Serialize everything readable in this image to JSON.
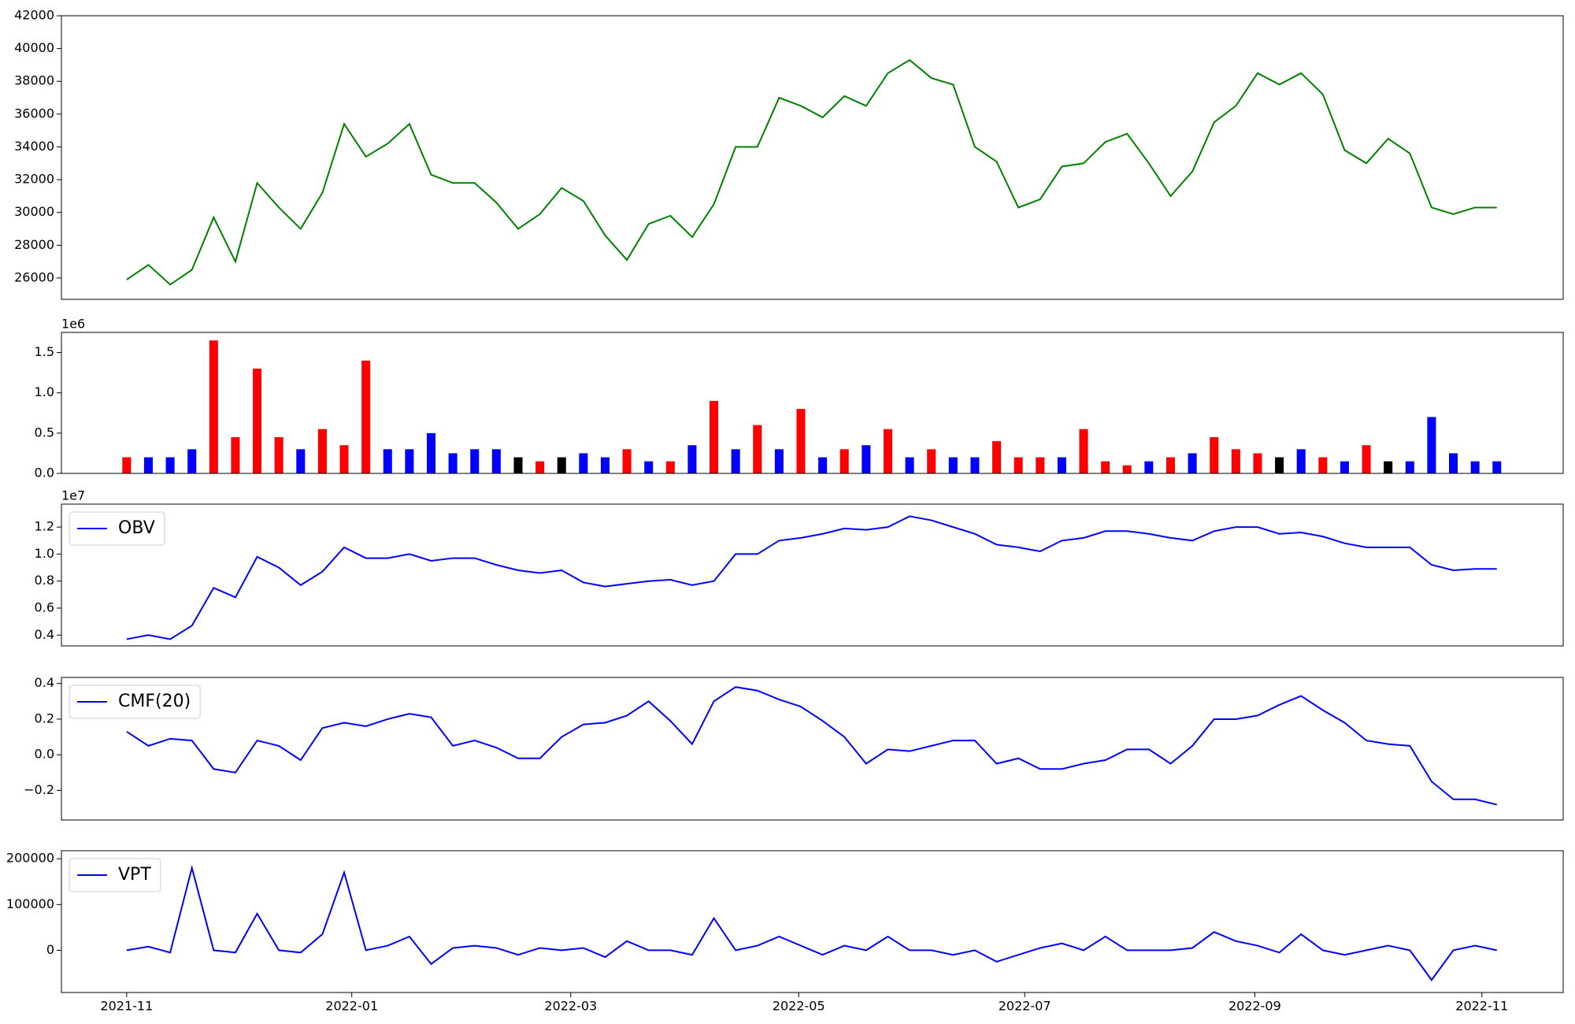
{
  "chart_data": [
    {
      "type": "line",
      "xlim": [
        -3,
        66.05
      ],
      "ylim": [
        24700,
        42000
      ],
      "yticks": [
        26000,
        28000,
        30000,
        32000,
        34000,
        36000,
        38000,
        40000,
        42000
      ],
      "series": [
        {
          "color": "#008000",
          "values": [
            25900,
            26800,
            25600,
            26500,
            29700,
            27000,
            31800,
            30300,
            29000,
            31200,
            35400,
            33400,
            34200,
            35400,
            32300,
            31800,
            31800,
            30600,
            29000,
            29900,
            31500,
            30700,
            28600,
            27100,
            29300,
            29800,
            28500,
            30500,
            34000,
            34000,
            37000,
            36500,
            35800,
            37100,
            36500,
            38500,
            39300,
            38200,
            37800,
            34000,
            33100,
            30300,
            30800,
            32800,
            33000,
            34300,
            34800,
            33000,
            31000,
            32500,
            35500,
            36500,
            38500,
            37800,
            38500,
            37200,
            33800,
            33000,
            34500,
            33600,
            30300,
            29900,
            30300,
            30300
          ]
        }
      ]
    },
    {
      "type": "bar",
      "xlim": [
        -3,
        66.05
      ],
      "ylim": [
        0,
        1.75
      ],
      "y_offset_text": "1e6",
      "yticks": [
        {
          "value": 0,
          "label": "0.0"
        },
        {
          "value": 0.5,
          "label": "0.5"
        },
        {
          "value": 1,
          "label": "1.0"
        },
        {
          "value": 1.5,
          "label": "1.5"
        }
      ],
      "series": [
        {
          "values": [
            0.2,
            0.2,
            0.2,
            0.3,
            1.65,
            0.45,
            1.3,
            0.45,
            0.3,
            0.55,
            0.35,
            1.4,
            0.3,
            0.3,
            0.5,
            0.25,
            0.3,
            0.3,
            0.2,
            0.15,
            0.2,
            0.25,
            0.2,
            0.3,
            0.15,
            0.15,
            0.35,
            0.9,
            0.3,
            0.6,
            0.3,
            0.8,
            0.2,
            0.3,
            0.35,
            0.55,
            0.2,
            0.3,
            0.2,
            0.2,
            0.4,
            0.2,
            0.2,
            0.2,
            0.55,
            0.15,
            0.1,
            0.15,
            0.2,
            0.25,
            0.45,
            0.3,
            0.25,
            0.2,
            0.3,
            0.2,
            0.15,
            0.35,
            0.15,
            0.15,
            0.7,
            0.25,
            0.15,
            0.15
          ],
          "colors": [
            "#ff0000",
            "#0000ff",
            "#0000ff",
            "#0000ff",
            "#ff0000",
            "#ff0000",
            "#ff0000",
            "#ff0000",
            "#0000ff",
            "#ff0000",
            "#ff0000",
            "#ff0000",
            "#0000ff",
            "#0000ff",
            "#0000ff",
            "#0000ff",
            "#0000ff",
            "#0000ff",
            "#000000",
            "#ff0000",
            "#000000",
            "#0000ff",
            "#0000ff",
            "#ff0000",
            "#0000ff",
            "#ff0000",
            "#0000ff",
            "#ff0000",
            "#0000ff",
            "#ff0000",
            "#0000ff",
            "#ff0000",
            "#0000ff",
            "#ff0000",
            "#0000ff",
            "#ff0000",
            "#0000ff",
            "#ff0000",
            "#0000ff",
            "#0000ff",
            "#ff0000",
            "#ff0000",
            "#ff0000",
            "#0000ff",
            "#ff0000",
            "#ff0000",
            "#ff0000",
            "#0000ff",
            "#ff0000",
            "#0000ff",
            "#ff0000",
            "#ff0000",
            "#ff0000",
            "#000000",
            "#0000ff",
            "#ff0000",
            "#0000ff",
            "#ff0000",
            "#000000",
            "#0000ff",
            "#0000ff",
            "#0000ff",
            "#0000ff",
            "#0000ff"
          ]
        }
      ]
    },
    {
      "type": "line",
      "xlim": [
        -3,
        66.05
      ],
      "ylim": [
        0.32,
        1.37
      ],
      "y_offset_text": "1e7",
      "legend": "upper left",
      "yticks": [
        0.4,
        0.6,
        0.8,
        {
          "value": 1,
          "label": "1.0"
        },
        1.2
      ],
      "series": [
        {
          "name": "OBV",
          "color": "#0000ff",
          "values": [
            0.37,
            0.4,
            0.37,
            0.47,
            0.75,
            0.68,
            0.98,
            0.9,
            0.77,
            0.87,
            1.05,
            0.97,
            0.97,
            1.0,
            0.95,
            0.97,
            0.97,
            0.92,
            0.88,
            0.86,
            0.88,
            0.79,
            0.76,
            0.78,
            0.8,
            0.81,
            0.77,
            0.8,
            1.0,
            1.0,
            1.1,
            1.12,
            1.15,
            1.19,
            1.18,
            1.2,
            1.28,
            1.25,
            1.2,
            1.15,
            1.07,
            1.05,
            1.02,
            1.1,
            1.12,
            1.17,
            1.17,
            1.15,
            1.12,
            1.1,
            1.17,
            1.2,
            1.2,
            1.15,
            1.16,
            1.13,
            1.08,
            1.05,
            1.05,
            1.05,
            0.92,
            0.88,
            0.89,
            0.89
          ]
        }
      ]
    },
    {
      "type": "line",
      "xlim": [
        -3,
        66.05
      ],
      "ylim": [
        -0.366,
        0.434
      ],
      "legend": "upper left",
      "yticks": [
        {
          "value": -0.2,
          "label": "−0.2"
        },
        {
          "value": 0,
          "label": "0.0"
        },
        0.2,
        0.4
      ],
      "series": [
        {
          "name": "CMF(20)",
          "color": "#0000ff",
          "values": [
            0.13,
            0.05,
            0.09,
            0.08,
            -0.08,
            -0.1,
            0.08,
            0.05,
            -0.03,
            0.15,
            0.18,
            0.16,
            0.2,
            0.23,
            0.21,
            0.05,
            0.08,
            0.04,
            -0.02,
            -0.02,
            0.1,
            0.17,
            0.18,
            0.22,
            0.3,
            0.19,
            0.06,
            0.3,
            0.38,
            0.36,
            0.31,
            0.27,
            0.19,
            0.1,
            -0.05,
            0.03,
            0.02,
            0.05,
            0.08,
            0.08,
            -0.05,
            -0.02,
            -0.08,
            -0.08,
            -0.05,
            -0.03,
            0.03,
            0.03,
            -0.05,
            0.05,
            0.2,
            0.2,
            0.22,
            0.28,
            0.33,
            0.25,
            0.18,
            0.08,
            0.06,
            0.05,
            -0.15,
            -0.25,
            -0.25,
            -0.28
          ]
        }
      ]
    },
    {
      "type": "line",
      "xlim": [
        -3,
        66.05
      ],
      "ylim": [
        -92300,
        217600
      ],
      "legend": "upper left",
      "yticks": [
        0,
        100000,
        200000
      ],
      "xticks": [
        {
          "value": 0,
          "label": "2021-11"
        },
        {
          "value": 10.35,
          "label": "2022-01"
        },
        {
          "value": 20.42,
          "label": "2022-03"
        },
        {
          "value": 30.9,
          "label": "2022-05"
        },
        {
          "value": 41.29,
          "label": "2022-07"
        },
        {
          "value": 51.87,
          "label": "2022-09"
        },
        {
          "value": 62.31,
          "label": "2022-11"
        }
      ],
      "series": [
        {
          "name": "VPT",
          "color": "#0000ff",
          "values": [
            0,
            8000,
            -5000,
            180000,
            0,
            -5000,
            80000,
            0,
            -5000,
            35000,
            170000,
            0,
            10000,
            30000,
            -30000,
            5000,
            10000,
            5000,
            -10000,
            5000,
            0,
            5000,
            -15000,
            20000,
            0,
            0,
            -10000,
            70000,
            0,
            10000,
            30000,
            10000,
            -10000,
            10000,
            0,
            30000,
            0,
            0,
            -10000,
            0,
            -25000,
            -10000,
            5000,
            15000,
            0,
            30000,
            0,
            0,
            0,
            5000,
            40000,
            20000,
            10000,
            -5000,
            35000,
            0,
            -10000,
            0,
            10000,
            0,
            -65000,
            0,
            10000,
            0
          ]
        }
      ]
    }
  ]
}
